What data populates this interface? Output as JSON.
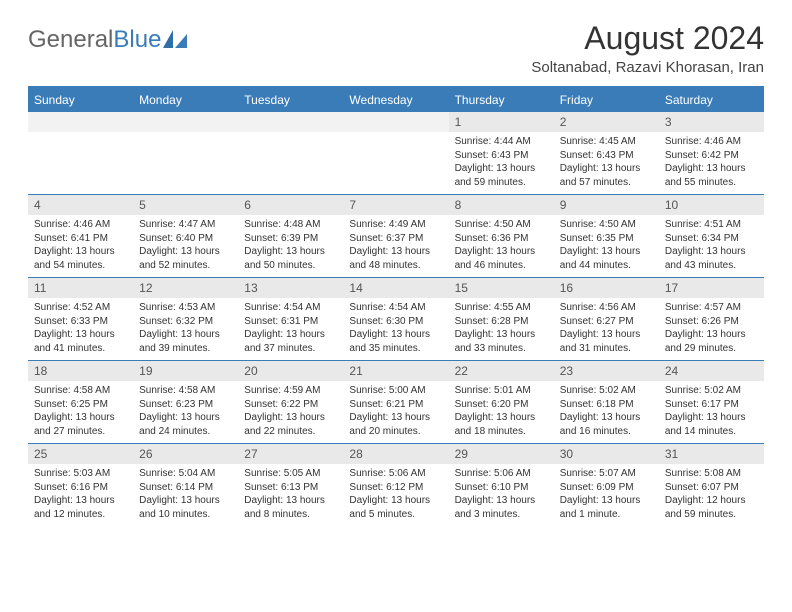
{
  "logo": {
    "text_gen": "General",
    "text_blue": "Blue"
  },
  "header": {
    "title": "August 2024",
    "subtitle": "Soltanabad, Razavi Khorasan, Iran"
  },
  "colors": {
    "accent": "#3a7cb8",
    "header_bg": "#3a7cb8",
    "daynum_bg": "#e9e9e9",
    "text": "#333333",
    "page_bg": "#ffffff"
  },
  "weekdays": [
    "Sunday",
    "Monday",
    "Tuesday",
    "Wednesday",
    "Thursday",
    "Friday",
    "Saturday"
  ],
  "weeks": [
    [
      {
        "day": "",
        "sunrise": "",
        "sunset": "",
        "daylight": ""
      },
      {
        "day": "",
        "sunrise": "",
        "sunset": "",
        "daylight": ""
      },
      {
        "day": "",
        "sunrise": "",
        "sunset": "",
        "daylight": ""
      },
      {
        "day": "",
        "sunrise": "",
        "sunset": "",
        "daylight": ""
      },
      {
        "day": "1",
        "sunrise": "Sunrise: 4:44 AM",
        "sunset": "Sunset: 6:43 PM",
        "daylight": "Daylight: 13 hours and 59 minutes."
      },
      {
        "day": "2",
        "sunrise": "Sunrise: 4:45 AM",
        "sunset": "Sunset: 6:43 PM",
        "daylight": "Daylight: 13 hours and 57 minutes."
      },
      {
        "day": "3",
        "sunrise": "Sunrise: 4:46 AM",
        "sunset": "Sunset: 6:42 PM",
        "daylight": "Daylight: 13 hours and 55 minutes."
      }
    ],
    [
      {
        "day": "4",
        "sunrise": "Sunrise: 4:46 AM",
        "sunset": "Sunset: 6:41 PM",
        "daylight": "Daylight: 13 hours and 54 minutes."
      },
      {
        "day": "5",
        "sunrise": "Sunrise: 4:47 AM",
        "sunset": "Sunset: 6:40 PM",
        "daylight": "Daylight: 13 hours and 52 minutes."
      },
      {
        "day": "6",
        "sunrise": "Sunrise: 4:48 AM",
        "sunset": "Sunset: 6:39 PM",
        "daylight": "Daylight: 13 hours and 50 minutes."
      },
      {
        "day": "7",
        "sunrise": "Sunrise: 4:49 AM",
        "sunset": "Sunset: 6:37 PM",
        "daylight": "Daylight: 13 hours and 48 minutes."
      },
      {
        "day": "8",
        "sunrise": "Sunrise: 4:50 AM",
        "sunset": "Sunset: 6:36 PM",
        "daylight": "Daylight: 13 hours and 46 minutes."
      },
      {
        "day": "9",
        "sunrise": "Sunrise: 4:50 AM",
        "sunset": "Sunset: 6:35 PM",
        "daylight": "Daylight: 13 hours and 44 minutes."
      },
      {
        "day": "10",
        "sunrise": "Sunrise: 4:51 AM",
        "sunset": "Sunset: 6:34 PM",
        "daylight": "Daylight: 13 hours and 43 minutes."
      }
    ],
    [
      {
        "day": "11",
        "sunrise": "Sunrise: 4:52 AM",
        "sunset": "Sunset: 6:33 PM",
        "daylight": "Daylight: 13 hours and 41 minutes."
      },
      {
        "day": "12",
        "sunrise": "Sunrise: 4:53 AM",
        "sunset": "Sunset: 6:32 PM",
        "daylight": "Daylight: 13 hours and 39 minutes."
      },
      {
        "day": "13",
        "sunrise": "Sunrise: 4:54 AM",
        "sunset": "Sunset: 6:31 PM",
        "daylight": "Daylight: 13 hours and 37 minutes."
      },
      {
        "day": "14",
        "sunrise": "Sunrise: 4:54 AM",
        "sunset": "Sunset: 6:30 PM",
        "daylight": "Daylight: 13 hours and 35 minutes."
      },
      {
        "day": "15",
        "sunrise": "Sunrise: 4:55 AM",
        "sunset": "Sunset: 6:28 PM",
        "daylight": "Daylight: 13 hours and 33 minutes."
      },
      {
        "day": "16",
        "sunrise": "Sunrise: 4:56 AM",
        "sunset": "Sunset: 6:27 PM",
        "daylight": "Daylight: 13 hours and 31 minutes."
      },
      {
        "day": "17",
        "sunrise": "Sunrise: 4:57 AM",
        "sunset": "Sunset: 6:26 PM",
        "daylight": "Daylight: 13 hours and 29 minutes."
      }
    ],
    [
      {
        "day": "18",
        "sunrise": "Sunrise: 4:58 AM",
        "sunset": "Sunset: 6:25 PM",
        "daylight": "Daylight: 13 hours and 27 minutes."
      },
      {
        "day": "19",
        "sunrise": "Sunrise: 4:58 AM",
        "sunset": "Sunset: 6:23 PM",
        "daylight": "Daylight: 13 hours and 24 minutes."
      },
      {
        "day": "20",
        "sunrise": "Sunrise: 4:59 AM",
        "sunset": "Sunset: 6:22 PM",
        "daylight": "Daylight: 13 hours and 22 minutes."
      },
      {
        "day": "21",
        "sunrise": "Sunrise: 5:00 AM",
        "sunset": "Sunset: 6:21 PM",
        "daylight": "Daylight: 13 hours and 20 minutes."
      },
      {
        "day": "22",
        "sunrise": "Sunrise: 5:01 AM",
        "sunset": "Sunset: 6:20 PM",
        "daylight": "Daylight: 13 hours and 18 minutes."
      },
      {
        "day": "23",
        "sunrise": "Sunrise: 5:02 AM",
        "sunset": "Sunset: 6:18 PM",
        "daylight": "Daylight: 13 hours and 16 minutes."
      },
      {
        "day": "24",
        "sunrise": "Sunrise: 5:02 AM",
        "sunset": "Sunset: 6:17 PM",
        "daylight": "Daylight: 13 hours and 14 minutes."
      }
    ],
    [
      {
        "day": "25",
        "sunrise": "Sunrise: 5:03 AM",
        "sunset": "Sunset: 6:16 PM",
        "daylight": "Daylight: 13 hours and 12 minutes."
      },
      {
        "day": "26",
        "sunrise": "Sunrise: 5:04 AM",
        "sunset": "Sunset: 6:14 PM",
        "daylight": "Daylight: 13 hours and 10 minutes."
      },
      {
        "day": "27",
        "sunrise": "Sunrise: 5:05 AM",
        "sunset": "Sunset: 6:13 PM",
        "daylight": "Daylight: 13 hours and 8 minutes."
      },
      {
        "day": "28",
        "sunrise": "Sunrise: 5:06 AM",
        "sunset": "Sunset: 6:12 PM",
        "daylight": "Daylight: 13 hours and 5 minutes."
      },
      {
        "day": "29",
        "sunrise": "Sunrise: 5:06 AM",
        "sunset": "Sunset: 6:10 PM",
        "daylight": "Daylight: 13 hours and 3 minutes."
      },
      {
        "day": "30",
        "sunrise": "Sunrise: 5:07 AM",
        "sunset": "Sunset: 6:09 PM",
        "daylight": "Daylight: 13 hours and 1 minute."
      },
      {
        "day": "31",
        "sunrise": "Sunrise: 5:08 AM",
        "sunset": "Sunset: 6:07 PM",
        "daylight": "Daylight: 12 hours and 59 minutes."
      }
    ]
  ]
}
